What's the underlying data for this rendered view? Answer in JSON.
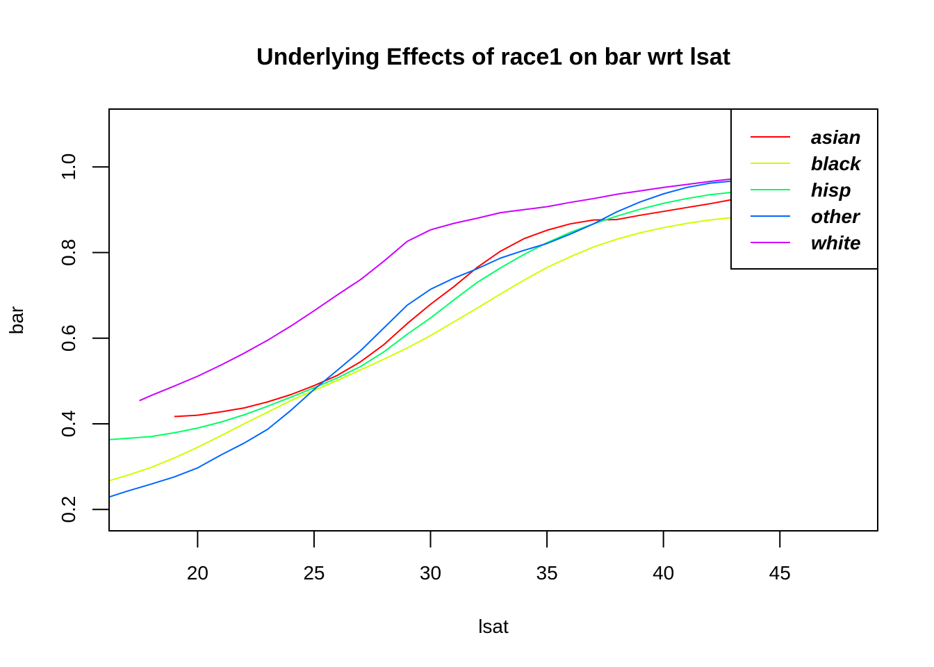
{
  "chart_data": {
    "type": "line",
    "title": "Underlying Effects of  race1  on  bar  wrt  lsat",
    "xlabel": "lsat",
    "ylabel": "bar",
    "xlim": [
      16.2,
      49.2
    ],
    "ylim": [
      0.15,
      1.135
    ],
    "xticks": [
      20,
      25,
      30,
      35,
      40,
      45
    ],
    "yticks": [
      0.2,
      0.4,
      0.6,
      0.8,
      1.0
    ],
    "xtick_labels": [
      "20",
      "25",
      "30",
      "35",
      "40",
      "45"
    ],
    "ytick_labels": [
      "0.2",
      "0.4",
      "0.6",
      "0.8",
      "1.0"
    ],
    "grid": false,
    "legend_position": "top-right",
    "series": [
      {
        "name": "asian",
        "color": "#FF0000",
        "points": [
          [
            19,
            0.417
          ],
          [
            20,
            0.42
          ],
          [
            21,
            0.428
          ],
          [
            22,
            0.437
          ],
          [
            23,
            0.451
          ],
          [
            24,
            0.468
          ],
          [
            25,
            0.489
          ],
          [
            26,
            0.513
          ],
          [
            27,
            0.545
          ],
          [
            28,
            0.585
          ],
          [
            29,
            0.634
          ],
          [
            30,
            0.679
          ],
          [
            31,
            0.72
          ],
          [
            32,
            0.765
          ],
          [
            33,
            0.803
          ],
          [
            34,
            0.832
          ],
          [
            35,
            0.852
          ],
          [
            36,
            0.867
          ],
          [
            37,
            0.876
          ],
          [
            38,
            0.877
          ],
          [
            39,
            0.887
          ],
          [
            40,
            0.896
          ],
          [
            41,
            0.905
          ],
          [
            42,
            0.914
          ],
          [
            43,
            0.924
          ]
        ]
      },
      {
        "name": "black",
        "color": "#CCFF00",
        "points": [
          [
            16.2,
            0.267
          ],
          [
            17,
            0.28
          ],
          [
            18,
            0.298
          ],
          [
            19,
            0.32
          ],
          [
            20,
            0.345
          ],
          [
            21,
            0.372
          ],
          [
            22,
            0.4
          ],
          [
            23,
            0.427
          ],
          [
            24,
            0.454
          ],
          [
            25,
            0.478
          ],
          [
            26,
            0.501
          ],
          [
            27,
            0.526
          ],
          [
            28,
            0.551
          ],
          [
            29,
            0.577
          ],
          [
            30,
            0.606
          ],
          [
            31,
            0.638
          ],
          [
            32,
            0.67
          ],
          [
            33,
            0.703
          ],
          [
            34,
            0.735
          ],
          [
            35,
            0.765
          ],
          [
            36,
            0.79
          ],
          [
            37,
            0.813
          ],
          [
            38,
            0.831
          ],
          [
            39,
            0.846
          ],
          [
            40,
            0.858
          ],
          [
            41,
            0.868
          ],
          [
            42,
            0.876
          ],
          [
            43,
            0.882
          ]
        ]
      },
      {
        "name": "hisp",
        "color": "#00FF66",
        "points": [
          [
            16.2,
            0.363
          ],
          [
            17,
            0.366
          ],
          [
            18,
            0.37
          ],
          [
            19,
            0.379
          ],
          [
            20,
            0.39
          ],
          [
            21,
            0.404
          ],
          [
            22,
            0.421
          ],
          [
            23,
            0.441
          ],
          [
            24,
            0.462
          ],
          [
            25,
            0.484
          ],
          [
            26,
            0.507
          ],
          [
            27,
            0.534
          ],
          [
            28,
            0.568
          ],
          [
            29,
            0.609
          ],
          [
            30,
            0.647
          ],
          [
            31,
            0.689
          ],
          [
            32,
            0.73
          ],
          [
            33,
            0.764
          ],
          [
            34,
            0.795
          ],
          [
            35,
            0.823
          ],
          [
            36,
            0.847
          ],
          [
            37,
            0.867
          ],
          [
            38,
            0.885
          ],
          [
            39,
            0.901
          ],
          [
            40,
            0.915
          ],
          [
            41,
            0.926
          ],
          [
            42,
            0.935
          ],
          [
            43,
            0.941
          ]
        ]
      },
      {
        "name": "other",
        "color": "#0066FF",
        "points": [
          [
            16.2,
            0.229
          ],
          [
            17,
            0.243
          ],
          [
            18,
            0.259
          ],
          [
            19,
            0.276
          ],
          [
            20,
            0.297
          ],
          [
            21,
            0.327
          ],
          [
            22,
            0.355
          ],
          [
            23,
            0.387
          ],
          [
            24,
            0.431
          ],
          [
            25,
            0.48
          ],
          [
            26,
            0.525
          ],
          [
            27,
            0.571
          ],
          [
            28,
            0.624
          ],
          [
            29,
            0.677
          ],
          [
            30,
            0.714
          ],
          [
            31,
            0.74
          ],
          [
            32,
            0.762
          ],
          [
            33,
            0.787
          ],
          [
            34,
            0.805
          ],
          [
            35,
            0.821
          ],
          [
            36,
            0.843
          ],
          [
            37,
            0.867
          ],
          [
            38,
            0.895
          ],
          [
            39,
            0.918
          ],
          [
            40,
            0.937
          ],
          [
            41,
            0.952
          ],
          [
            42,
            0.962
          ],
          [
            43,
            0.967
          ]
        ]
      },
      {
        "name": "white",
        "color": "#CC00FF",
        "points": [
          [
            17.5,
            0.454
          ],
          [
            18,
            0.466
          ],
          [
            19,
            0.488
          ],
          [
            20,
            0.511
          ],
          [
            21,
            0.537
          ],
          [
            22,
            0.565
          ],
          [
            23,
            0.595
          ],
          [
            24,
            0.628
          ],
          [
            25,
            0.664
          ],
          [
            26,
            0.701
          ],
          [
            27,
            0.737
          ],
          [
            28,
            0.78
          ],
          [
            29,
            0.826
          ],
          [
            30,
            0.853
          ],
          [
            31,
            0.868
          ],
          [
            32,
            0.88
          ],
          [
            33,
            0.893
          ],
          [
            34,
            0.9
          ],
          [
            35,
            0.907
          ],
          [
            36,
            0.917
          ],
          [
            37,
            0.926
          ],
          [
            38,
            0.936
          ],
          [
            39,
            0.944
          ],
          [
            40,
            0.952
          ],
          [
            41,
            0.959
          ],
          [
            42,
            0.966
          ],
          [
            43,
            0.972
          ]
        ]
      }
    ]
  }
}
